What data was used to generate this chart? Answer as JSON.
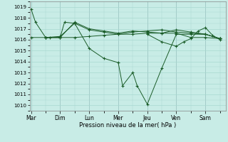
{
  "xlabel": "Pression niveau de la mer( hPa )",
  "bg_color": "#c8ece6",
  "grid_color": "#a8d8d0",
  "line_color": "#1a5c28",
  "ylim": [
    1009.5,
    1019.5
  ],
  "day_labels": [
    "Mar",
    "Dim",
    "Lun",
    "Mer",
    "Jeu",
    "Ven",
    "Sam"
  ],
  "yticks": [
    1010,
    1011,
    1012,
    1013,
    1014,
    1015,
    1016,
    1017,
    1018,
    1019
  ],
  "series1_x": [
    0.0,
    0.15,
    0.5,
    0.65,
    1.0,
    1.15,
    1.5,
    2.0,
    2.5,
    3.0,
    3.15,
    3.5,
    3.65,
    4.0,
    4.5,
    5.0,
    5.5,
    6.0,
    6.5
  ],
  "series1_y": [
    1018.8,
    1017.6,
    1016.2,
    1016.2,
    1016.2,
    1017.6,
    1017.5,
    1015.2,
    1014.3,
    1013.9,
    1011.8,
    1013.0,
    1011.8,
    1010.1,
    1013.4,
    1016.5,
    1016.5,
    1016.5,
    1016.1
  ],
  "series2_x": [
    0.0,
    0.5,
    1.0,
    1.5,
    2.0,
    2.5,
    3.0,
    3.5,
    4.0,
    4.5,
    5.0,
    5.5,
    6.0,
    6.5
  ],
  "series2_y": [
    1016.2,
    1016.2,
    1016.2,
    1016.2,
    1016.3,
    1016.4,
    1016.5,
    1016.5,
    1016.6,
    1016.6,
    1016.6,
    1016.2,
    1016.2,
    1016.1
  ],
  "series3_x": [
    0.5,
    1.0,
    1.5,
    2.0,
    2.5,
    3.0,
    3.5,
    4.0,
    4.5,
    5.0,
    5.5,
    6.0,
    6.5
  ],
  "series3_y": [
    1016.2,
    1016.3,
    1017.5,
    1016.9,
    1016.7,
    1016.5,
    1016.7,
    1016.8,
    1016.9,
    1016.7,
    1016.6,
    1016.5,
    1016.1
  ],
  "series4_x": [
    0.5,
    1.0,
    1.5,
    2.0,
    2.5,
    3.0,
    3.5,
    4.0,
    4.5,
    5.0,
    5.5,
    6.0,
    6.5
  ],
  "series4_y": [
    1016.2,
    1016.2,
    1017.6,
    1017.0,
    1016.8,
    1016.6,
    1016.8,
    1016.7,
    1016.6,
    1016.9,
    1016.7,
    1016.5,
    1016.1
  ],
  "series5_x": [
    4.0,
    4.5,
    5.0,
    5.25,
    5.5,
    5.75,
    6.0,
    6.25,
    6.5
  ],
  "series5_y": [
    1016.5,
    1015.8,
    1015.4,
    1015.8,
    1016.1,
    1016.8,
    1017.1,
    1016.4,
    1016.0
  ]
}
